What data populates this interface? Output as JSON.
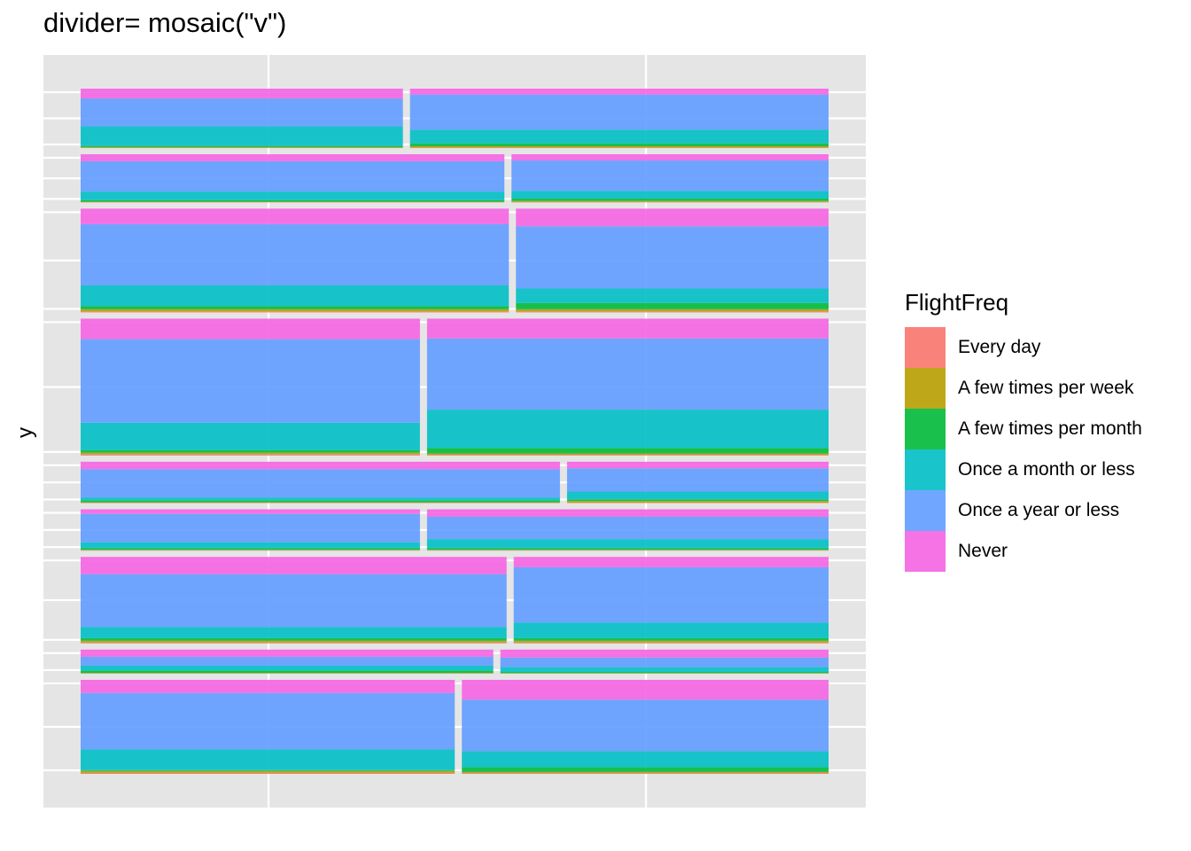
{
  "chart_data": {
    "type": "mosaic",
    "title": "divider= mosaic(\"v\")",
    "xlabel": "",
    "ylabel": "y",
    "legend": {
      "title": "FlightFreq",
      "position": "right",
      "entries": [
        {
          "label": "Every day",
          "color": "#F8766D"
        },
        {
          "label": "A few times per week",
          "color": "#B79F00"
        },
        {
          "label": "A few times per month",
          "color": "#00BA38"
        },
        {
          "label": "Once a month or less",
          "color": "#00BFC4"
        },
        {
          "label": "Once a year or less",
          "color": "#619CFF"
        },
        {
          "label": "Never",
          "color": "#F564E3"
        }
      ]
    },
    "grid": true,
    "panel_background": "#E5E5E5",
    "rows": [
      {
        "share": 0.079,
        "tiles": [
          {
            "share": 0.435,
            "stack": [
              0.005,
              0.01,
              0.02,
              0.33,
              0.47,
              0.165
            ]
          },
          {
            "share": 0.565,
            "stack": [
              0.01,
              0.02,
              0.05,
              0.23,
              0.59,
              0.1
            ]
          }
        ]
      },
      {
        "share": 0.064,
        "tiles": [
          {
            "share": 0.572,
            "stack": [
              0.005,
              0.01,
              0.03,
              0.18,
              0.63,
              0.145
            ]
          },
          {
            "share": 0.428,
            "stack": [
              0.01,
              0.02,
              0.05,
              0.16,
              0.63,
              0.13
            ]
          }
        ]
      },
      {
        "share": 0.138,
        "tiles": [
          {
            "share": 0.578,
            "stack": [
              0.01,
              0.02,
              0.03,
              0.2,
              0.59,
              0.15
            ]
          },
          {
            "share": 0.422,
            "stack": [
              0.01,
              0.02,
              0.06,
              0.14,
              0.6,
              0.17
            ]
          }
        ]
      },
      {
        "share": 0.182,
        "tiles": [
          {
            "share": 0.458,
            "stack": [
              0.01,
              0.01,
              0.02,
              0.2,
              0.61,
              0.15
            ]
          },
          {
            "share": 0.542,
            "stack": [
              0.005,
              0.01,
              0.04,
              0.28,
              0.52,
              0.145
            ]
          }
        ]
      },
      {
        "share": 0.055,
        "tiles": [
          {
            "share": 0.647,
            "stack": [
              0.01,
              0.01,
              0.05,
              0.06,
              0.69,
              0.18
            ]
          },
          {
            "share": 0.353,
            "stack": [
              0.01,
              0.04,
              0.04,
              0.19,
              0.56,
              0.16
            ]
          }
        ]
      },
      {
        "share": 0.055,
        "tiles": [
          {
            "share": 0.458,
            "stack": [
              0.01,
              0.01,
              0.04,
              0.14,
              0.69,
              0.11
            ]
          },
          {
            "share": 0.542,
            "stack": [
              0.01,
              0.01,
              0.04,
              0.22,
              0.54,
              0.18
            ]
          }
        ]
      },
      {
        "share": 0.115,
        "tiles": [
          {
            "share": 0.575,
            "stack": [
              0.01,
              0.02,
              0.03,
              0.13,
              0.61,
              0.2
            ]
          },
          {
            "share": 0.425,
            "stack": [
              0.01,
              0.02,
              0.03,
              0.18,
              0.64,
              0.12
            ]
          }
        ]
      },
      {
        "share": 0.032,
        "tiles": [
          {
            "share": 0.557,
            "stack": [
              0.01,
              0.02,
              0.1,
              0.2,
              0.37,
              0.3
            ]
          },
          {
            "share": 0.443,
            "stack": [
              0.01,
              0.01,
              0.05,
              0.2,
              0.4,
              0.33
            ]
          }
        ]
      },
      {
        "share": 0.125,
        "tiles": [
          {
            "share": 0.505,
            "stack": [
              0.01,
              0.02,
              0.01,
              0.22,
              0.6,
              0.14
            ]
          },
          {
            "share": 0.495,
            "stack": [
              0.01,
              0.01,
              0.05,
              0.17,
              0.55,
              0.21
            ]
          }
        ]
      }
    ]
  }
}
